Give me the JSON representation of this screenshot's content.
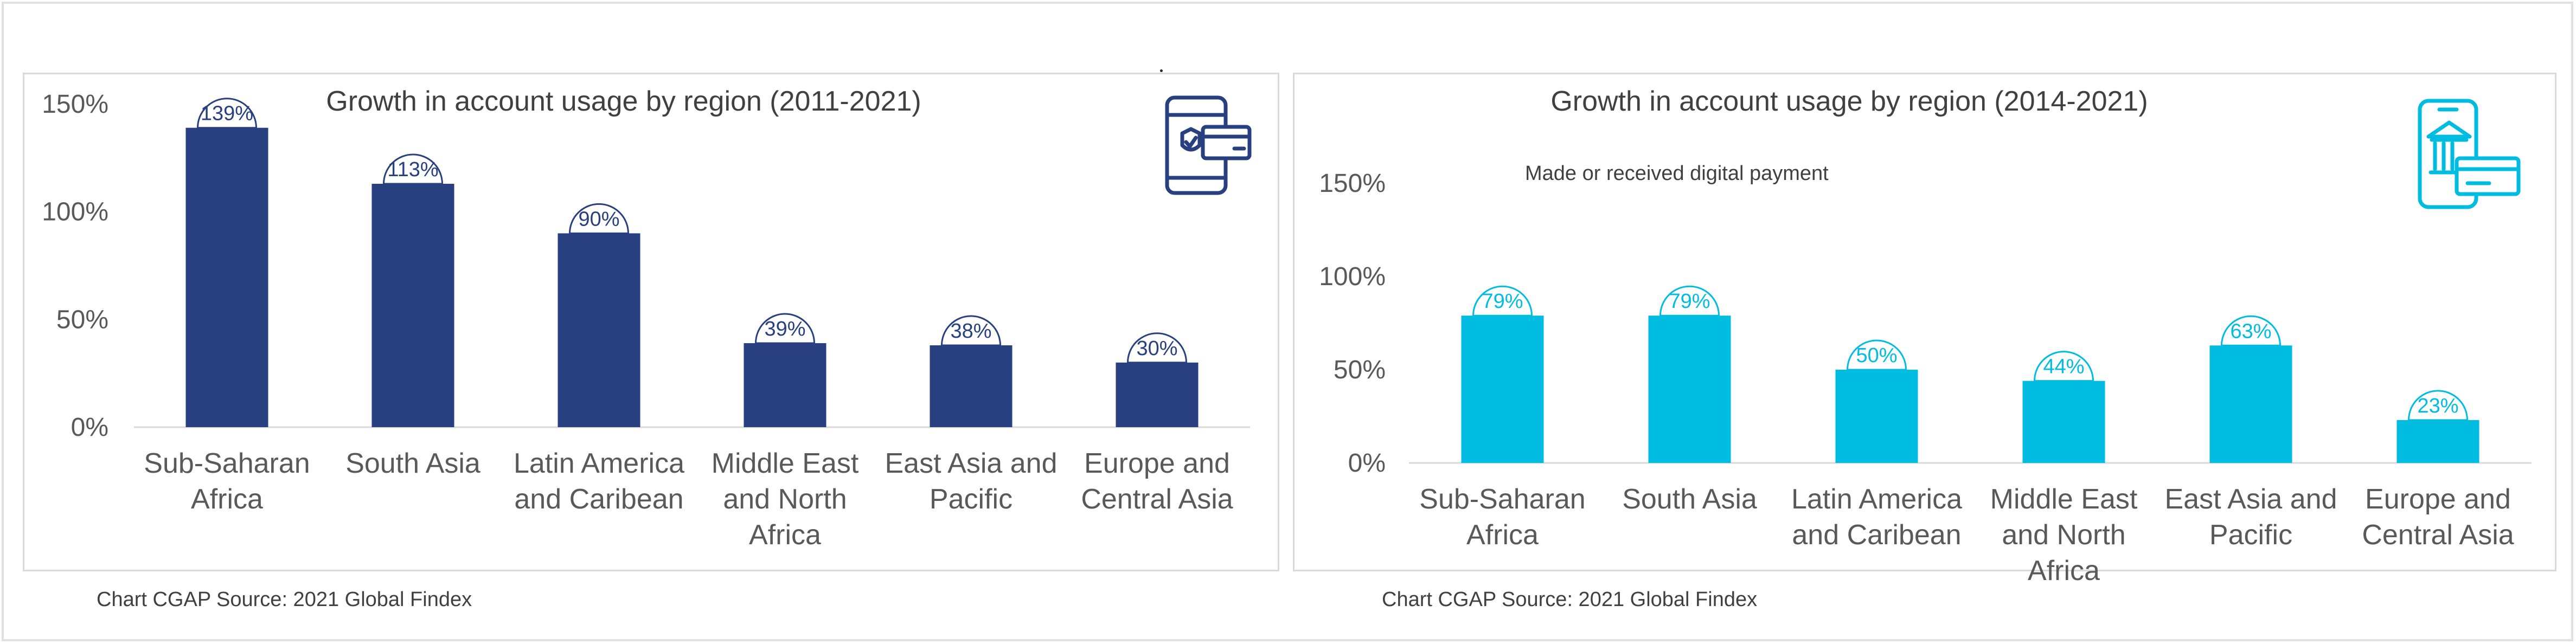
{
  "colors": {
    "left_bar": "#283F80",
    "right_bar": "#00BCE0",
    "axis_line": "#d9d9d9",
    "label_fill": "#ffffff"
  },
  "icons": [
    "mobile-card-security-icon",
    "mobile-bank-card-icon"
  ],
  "chart_data": [
    {
      "type": "bar",
      "title": "Growth in account usage by region  (2011-2021)",
      "categories": [
        "Sub-Saharan Africa",
        "South Asia",
        "Latin America and Caribean",
        "Middle East and North Africa",
        "East Asia and Pacific",
        "Europe and Central Asia"
      ],
      "values": [
        139,
        113,
        90,
        39,
        38,
        30
      ],
      "value_labels": [
        "139%",
        "113%",
        "90%",
        "39%",
        "38%",
        "30%"
      ],
      "yticks": [
        "0%",
        "50%",
        "100%",
        "150%"
      ],
      "ylim": [
        0,
        150
      ],
      "grid": false,
      "legend": "none",
      "source": "Chart CGAP Source: 2021  Global Findex"
    },
    {
      "type": "bar",
      "title": "Growth in account usage by region  (2014-2021)",
      "subtitle": "Made or received digital payment",
      "categories": [
        "Sub-Saharan Africa",
        "South Asia",
        "Latin America and Caribean",
        "Middle East and North Africa",
        "East Asia and Pacific",
        "Europe and Central Asia"
      ],
      "values": [
        79,
        79,
        50,
        44,
        63,
        23
      ],
      "value_labels": [
        "79%",
        "79%",
        "50%",
        "44%",
        "63%",
        "23%"
      ],
      "yticks": [
        "0%",
        "50%",
        "100%",
        "150%"
      ],
      "ylim": [
        0,
        150
      ],
      "grid": false,
      "legend": "none",
      "source": "Chart CGAP Source: 2021  Global Findex"
    }
  ]
}
